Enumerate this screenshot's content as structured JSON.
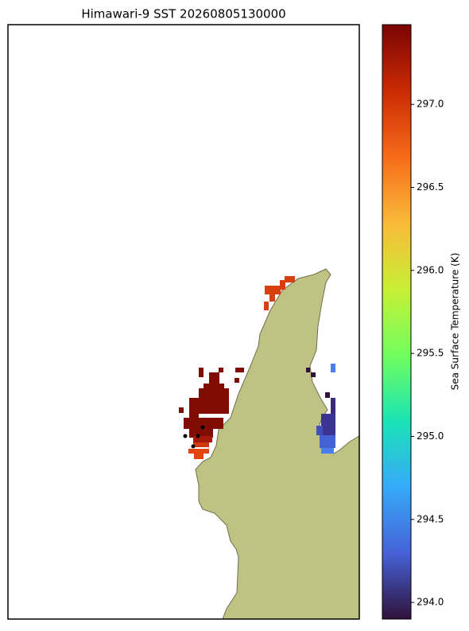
{
  "chart_data": {
    "type": "map",
    "title": "Himawari-9 SST 20260805130000",
    "colorbar_label": "Sea Surface Temperature (K)",
    "clim": [
      293.9,
      297.48
    ],
    "ticks": [
      {
        "value": 294,
        "label": "294.0"
      },
      {
        "value": 294.5,
        "label": "294.5"
      },
      {
        "value": 295,
        "label": "295.0"
      },
      {
        "value": 295.5,
        "label": "295.5"
      },
      {
        "value": 296,
        "label": "296.0"
      },
      {
        "value": 296.5,
        "label": "296.5"
      },
      {
        "value": 297,
        "label": "297.0"
      }
    ],
    "colormap": [
      "#30123b",
      "#4662d7",
      "#36aaf9",
      "#1ae4b6",
      "#72fe5e",
      "#c8ef34",
      "#faba39",
      "#f66b19",
      "#ca2a04",
      "#7a0403"
    ]
  }
}
